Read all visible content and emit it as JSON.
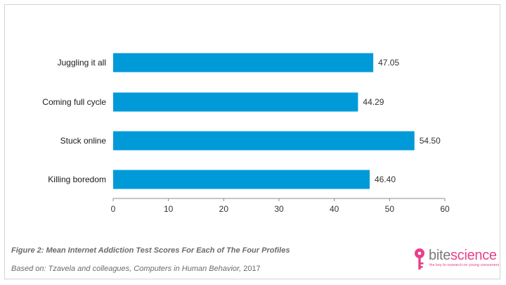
{
  "chart_data": {
    "type": "bar",
    "orientation": "horizontal",
    "categories": [
      "Juggling it all",
      "Coming full cycle",
      "Stuck online",
      "Killing boredom"
    ],
    "values": [
      47.05,
      44.29,
      54.5,
      46.4
    ],
    "value_labels": [
      "47.05",
      "44.29",
      "54.50",
      "46.40"
    ],
    "xlim": [
      0,
      60
    ],
    "xticks": [
      "0",
      "10",
      "20",
      "30",
      "40",
      "50",
      "60"
    ],
    "bar_color": "#009ad8",
    "grid": false
  },
  "caption": "Figure 2: Mean Internet Addiction Test Scores For Each of The Four Profiles",
  "source": {
    "prefix": "Based on: Tzavela and colleagues, Computers in Human Behavior,",
    "year": "2017"
  },
  "logo": {
    "text_part1": "bite",
    "text_part2": "science",
    "tagline": "the key to research on young consumers",
    "brand_color": "#e8408a",
    "icon": "key-icon"
  }
}
